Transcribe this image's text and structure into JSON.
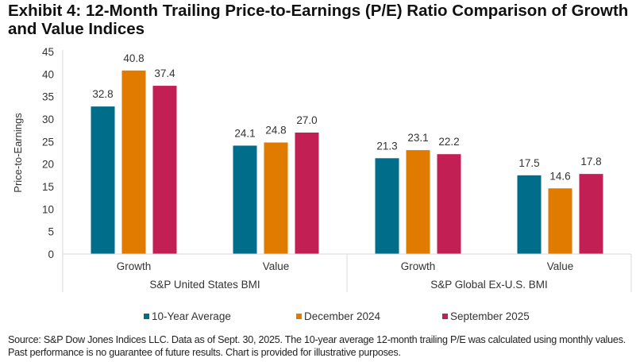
{
  "title": "Exhibit 4: 12-Month Trailing Price-to-Earnings (P/E) Ratio Comparison of Growth and Value Indices",
  "source_note": "Source: S&P Dow Jones Indices LLC. Data as of Sept. 30, 2025. The 10-year average 12-month trailing P/E was calculated using monthly values. Past performance is no guarantee of future results. Chart is provided for illustrative purposes.",
  "chart_data": {
    "type": "bar",
    "title": "Exhibit 4: 12-Month Trailing Price-to-Earnings (P/E) Ratio Comparison of Growth and Value Indices",
    "xlabel": "",
    "ylabel": "Price-to-Earnings",
    "ylim": [
      0,
      45
    ],
    "yticks": [
      0,
      5,
      10,
      15,
      20,
      25,
      30,
      35,
      40,
      45
    ],
    "grid": false,
    "legend_position": "bottom",
    "groups": [
      {
        "label": "S&P United States BMI",
        "categories": [
          "Growth",
          "Value"
        ]
      },
      {
        "label": "S&P Global Ex-U.S. BMI",
        "categories": [
          "Growth",
          "Value"
        ]
      }
    ],
    "categories": [
      "S&P United States BMI - Growth",
      "S&P United States BMI - Value",
      "S&P Global Ex-U.S. BMI - Growth",
      "S&P Global Ex-U.S. BMI - Value"
    ],
    "series": [
      {
        "name": "10-Year Average",
        "color": "#006e8a",
        "values": [
          32.8,
          24.1,
          21.3,
          17.5
        ],
        "labels": [
          "32.8",
          "24.1",
          "21.3",
          "17.5"
        ]
      },
      {
        "name": "December 2024",
        "color": "#e07b00",
        "values": [
          40.8,
          24.8,
          23.1,
          14.6
        ],
        "labels": [
          "40.8",
          "24.8",
          "23.1",
          "14.6"
        ]
      },
      {
        "name": "September 2025",
        "color": "#c21f55",
        "values": [
          37.4,
          27.0,
          22.2,
          17.8
        ],
        "labels": [
          "37.4",
          "27.0",
          "22.2",
          "17.8"
        ]
      }
    ]
  }
}
